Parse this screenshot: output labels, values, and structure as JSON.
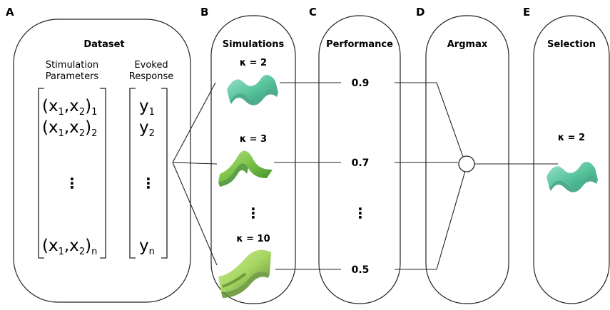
{
  "panels": {
    "a": {
      "label": "A",
      "title": "Dataset",
      "col1_line1": "Stimulation",
      "col1_line2": "Parameters",
      "col2_line1": "Evoked",
      "col2_line2": "Response",
      "x_rows": [
        {
          "base": "(x",
          "s1": "1",
          "comma": ",x",
          "s2": "2",
          "close": ")",
          "idx": "1"
        },
        {
          "base": "(x",
          "s1": "1",
          "comma": ",x",
          "s2": "2",
          "close": ")",
          "idx": "2"
        },
        {
          "base": "(x",
          "s1": "1",
          "comma": ",x",
          "s2": "2",
          "close": ")",
          "idx": "n"
        }
      ],
      "y_rows": [
        {
          "base": "y",
          "idx": "1"
        },
        {
          "base": "y",
          "idx": "2"
        },
        {
          "base": "y",
          "idx": "n"
        }
      ],
      "ellipsis": "⋮"
    },
    "b": {
      "label": "B",
      "title": "Simulations",
      "kappas": [
        "κ = 2",
        "κ = 3",
        "κ = 10"
      ],
      "ellipsis": "⋮"
    },
    "c": {
      "label": "C",
      "title": "Performance",
      "values": [
        "0.9",
        "0.7",
        "0.5"
      ],
      "ellipsis": "⋮"
    },
    "d": {
      "label": "D",
      "title": "Argmax"
    },
    "e": {
      "label": "E",
      "title": "Selection",
      "kappa": "κ = 2"
    }
  },
  "colors": {
    "teal_light": "#8fdcc0",
    "teal_mid": "#55c39c",
    "teal_dark": "#2f9e78",
    "green_light": "#a8dc74",
    "green_mid": "#76c043",
    "green_dark": "#3f8f2a",
    "lime_light": "#c9e98a",
    "lime_mid": "#a2d45e",
    "lime_dark": "#5f8f2c"
  },
  "icons": [
    "teal-wave-surface-icon",
    "green-peak-surface-icon",
    "lime-sheet-surface-icon",
    "teal-wave-surface-icon"
  ]
}
